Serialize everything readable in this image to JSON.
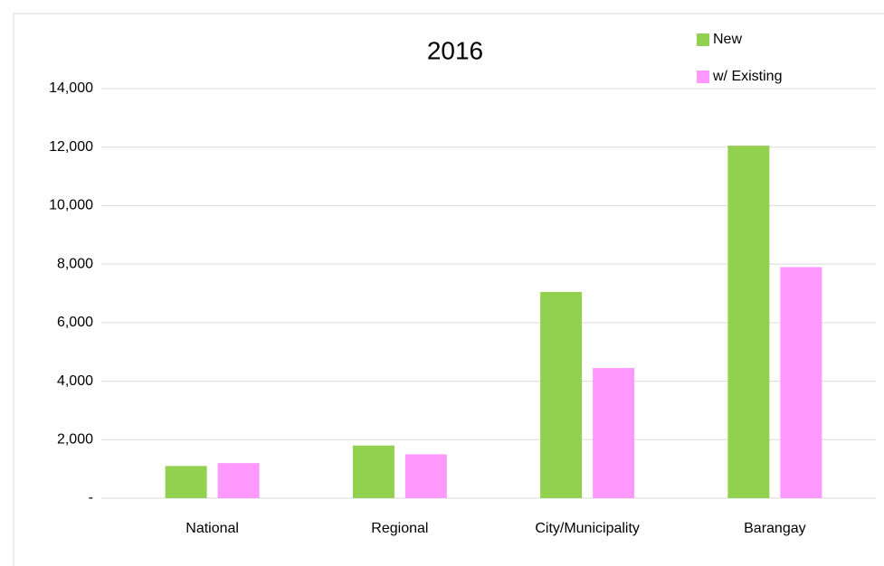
{
  "chart_data": {
    "type": "bar",
    "title": "2016",
    "categories": [
      "National",
      "Regional",
      "City/Municipality",
      "Barangay"
    ],
    "series": [
      {
        "name": "New",
        "color": "#92d050",
        "values": [
          1100,
          1800,
          7050,
          12050
        ]
      },
      {
        "name": "w/ Existing",
        "color": "#ff99ff",
        "values": [
          1200,
          1500,
          4450,
          7900
        ]
      }
    ],
    "ylim": [
      0,
      14000
    ],
    "yticks": [
      {
        "value": 0,
        "label": "-"
      },
      {
        "value": 2000,
        "label": "2,000"
      },
      {
        "value": 4000,
        "label": "4,000"
      },
      {
        "value": 6000,
        "label": "6,000"
      },
      {
        "value": 8000,
        "label": "8,000"
      },
      {
        "value": 10000,
        "label": "10,000"
      },
      {
        "value": 12000,
        "label": "12,000"
      },
      {
        "value": 14000,
        "label": "14,000"
      }
    ],
    "grid": true,
    "legend": "top-right"
  }
}
